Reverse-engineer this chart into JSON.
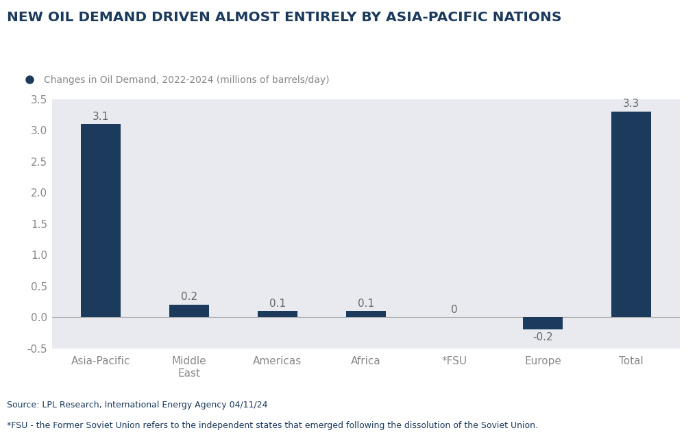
{
  "title": "NEW OIL DEMAND DRIVEN ALMOST ENTIRELY BY ASIA-PACIFIC NATIONS",
  "legend_label": "Changes in Oil Demand, 2022-2024 (millions of barrels/day)",
  "categories": [
    "Asia-Pacific",
    "Middle\nEast",
    "Americas",
    "Africa",
    "*FSU",
    "Europe",
    "Total"
  ],
  "values": [
    3.1,
    0.2,
    0.1,
    0.1,
    0,
    -0.2,
    3.3
  ],
  "bar_color": "#1b3a5c",
  "plot_bg_color": "#e9eaf0",
  "fig_bg_color": "#ffffff",
  "ylim": [
    -0.5,
    3.5
  ],
  "yticks": [
    -0.5,
    0.0,
    0.5,
    1.0,
    1.5,
    2.0,
    2.5,
    3.0,
    3.5
  ],
  "source_text": "Source: LPL Research, International Energy Agency 04/11/24",
  "footnote_text": "*FSU - the Former Soviet Union refers to the independent states that emerged following the dissolution of the Soviet Union.",
  "title_color": "#1b3a5c",
  "axis_label_color": "#888888",
  "value_label_color": "#666666",
  "legend_dot_color": "#1b3a5c",
  "legend_text_color": "#888888",
  "title_fontsize": 14.5,
  "legend_fontsize": 10,
  "axis_tick_fontsize": 11,
  "value_label_fontsize": 11,
  "bar_width": 0.45,
  "source_fontsize": 9,
  "footnote_fontsize": 9
}
